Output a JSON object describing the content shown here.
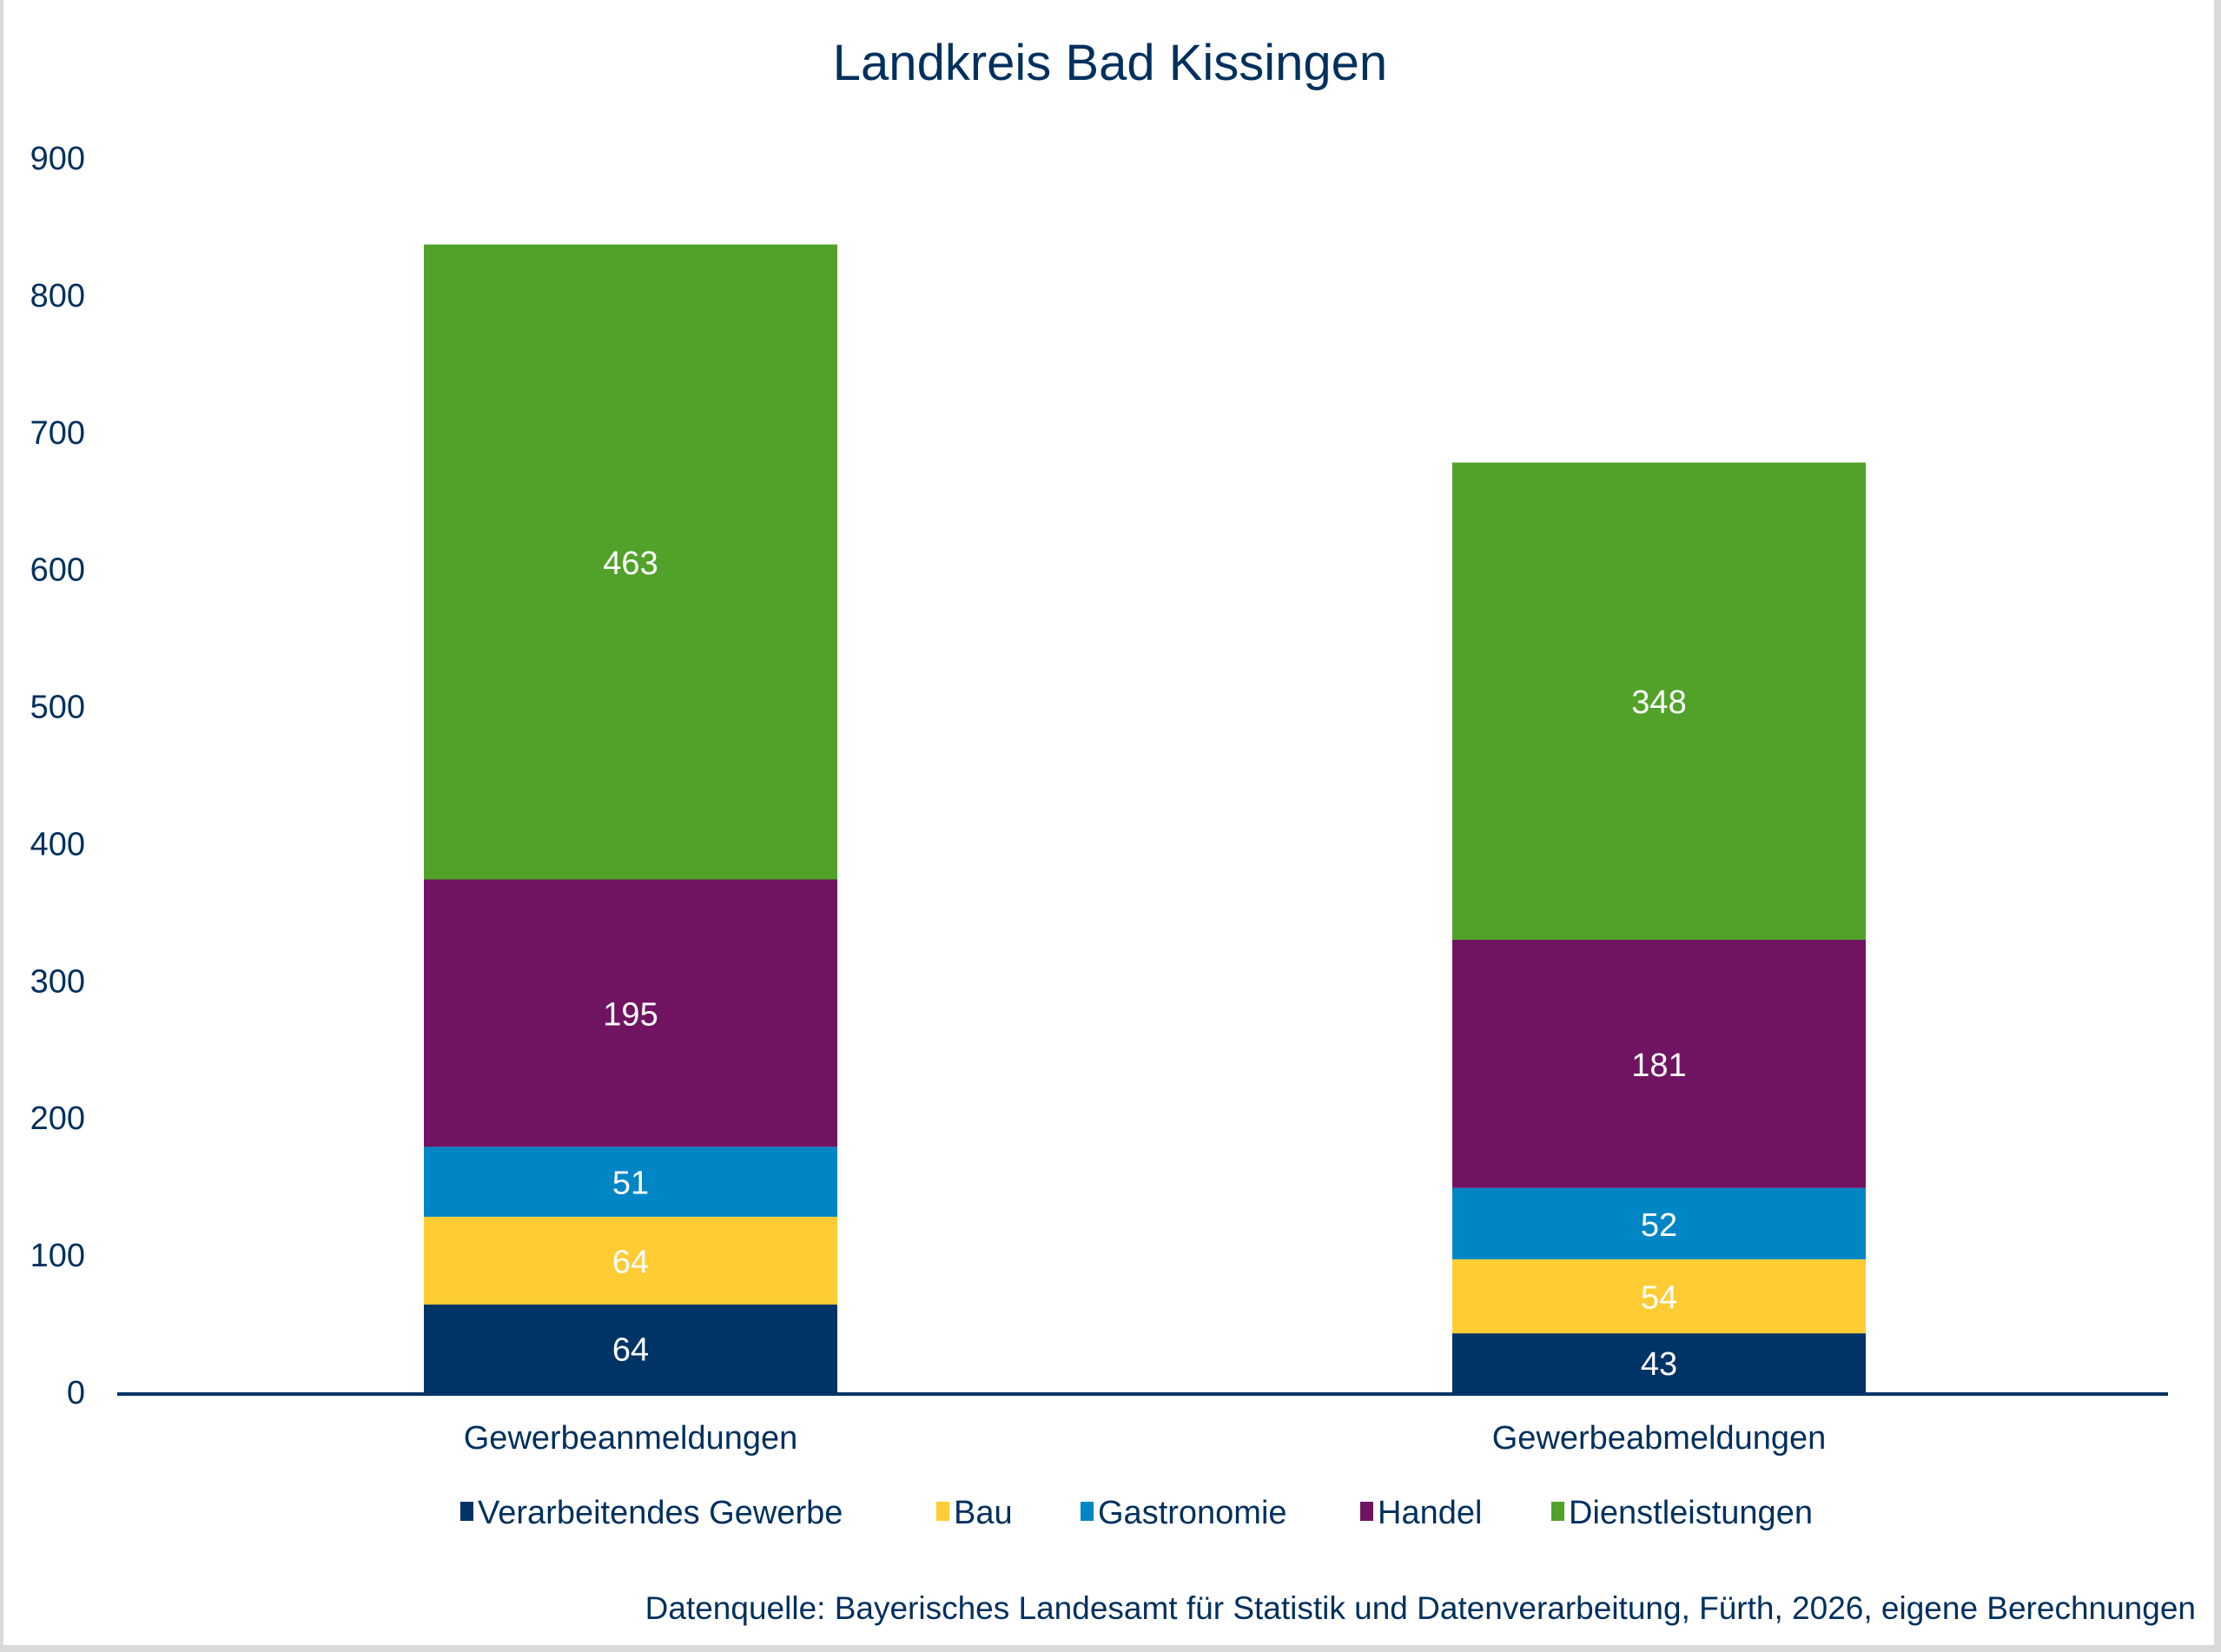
{
  "chart_data": {
    "type": "bar",
    "stacked": true,
    "title": "Landkreis Bad Kissingen",
    "xlabel": "",
    "ylabel": "",
    "ylim": [
      0,
      900
    ],
    "yticks": [
      0,
      100,
      200,
      300,
      400,
      500,
      600,
      700,
      800,
      900
    ],
    "grid": false,
    "legend_position": "bottom",
    "categories": [
      "Gewerbeanmeldungen",
      "Gewerbeabmeldungen"
    ],
    "series": [
      {
        "name": "Verarbeitendes Gewerbe",
        "color": "#003366",
        "values": [
          64,
          43
        ]
      },
      {
        "name": "Bau",
        "color": "#FFCC33",
        "values": [
          64,
          54
        ]
      },
      {
        "name": "Gastronomie",
        "color": "#0085C5",
        "values": [
          51,
          52
        ]
      },
      {
        "name": "Handel",
        "color": "#701462",
        "values": [
          195,
          181
        ]
      },
      {
        "name": "Dienstleistungen",
        "color": "#52A22A",
        "values": [
          463,
          348
        ]
      }
    ],
    "source": "Datenquelle: Bayerisches Landesamt für Statistik und Datenverarbeitung, Fürth, 2026, eigene Berechnungen"
  },
  "colors": {
    "text": "#00305E",
    "axis": "#003366",
    "data_label": "#FFFFFF"
  }
}
